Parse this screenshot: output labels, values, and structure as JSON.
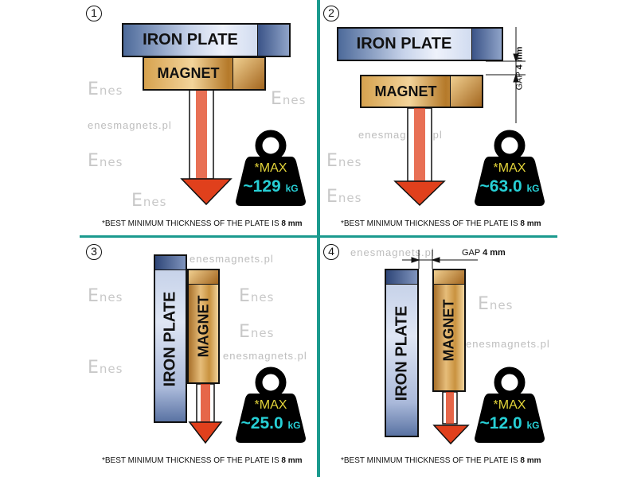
{
  "watermark": {
    "site": "enesmagnets.pl",
    "logo": "Enes"
  },
  "colors": {
    "divider": "#1b9a8e",
    "arrow": "#e0401c",
    "weight": "#000000",
    "max_text": "#e4d53a",
    "value_text": "#27d0d6"
  },
  "panels": [
    {
      "number": "1",
      "plate": "IRON PLATE",
      "magnet": "MAGNET",
      "max": "*MAX",
      "value": "~129",
      "unit": "kG",
      "note": "*BEST MINIMUM THICKNESS OF THE PLATE IS ",
      "note_bold": "8 mm"
    },
    {
      "number": "2",
      "plate": "IRON PLATE",
      "magnet": "MAGNET",
      "gap_label": "GAP",
      "gap_value": "4 mm",
      "max": "*MAX",
      "value": "~63.0",
      "unit": "kG",
      "note": "*BEST MINIMUM THICKNESS OF THE PLATE IS ",
      "note_bold": "8 mm"
    },
    {
      "number": "3",
      "plate": "IRON  PLATE",
      "magnet": "MAGNET",
      "max": "*MAX",
      "value": "~25.0",
      "unit": "kG",
      "note": "*BEST MINIMUM THICKNESS OF THE PLATE IS ",
      "note_bold": "8 mm"
    },
    {
      "number": "4",
      "plate": "IRON PLATE",
      "magnet": "MAGNET",
      "gap_label": "GAP",
      "gap_value": "4 mm",
      "max": "*MAX",
      "value": "~12.0",
      "unit": "kG",
      "note": "*BEST MINIMUM THICKNESS OF THE PLATE IS ",
      "note_bold": "8 mm"
    }
  ]
}
